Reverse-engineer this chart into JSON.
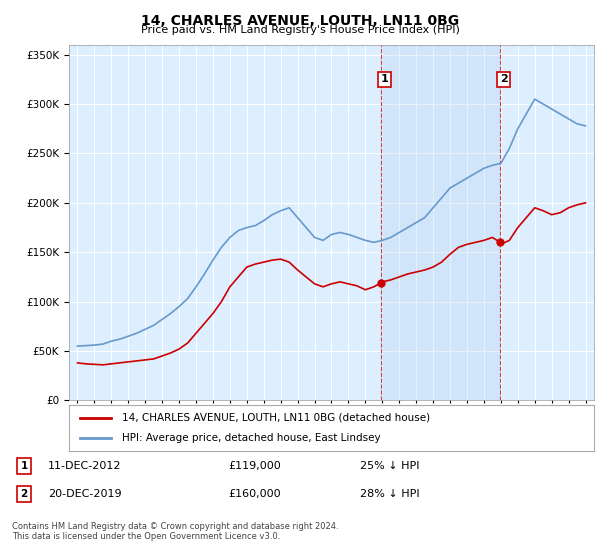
{
  "title": "14, CHARLES AVENUE, LOUTH, LN11 0BG",
  "subtitle": "Price paid vs. HM Land Registry's House Price Index (HPI)",
  "legend_line1": "14, CHARLES AVENUE, LOUTH, LN11 0BG (detached house)",
  "legend_line2": "HPI: Average price, detached house, East Lindsey",
  "annotation1_label": "1",
  "annotation1_date": "11-DEC-2012",
  "annotation1_price": "£119,000",
  "annotation1_hpi": "25% ↓ HPI",
  "annotation2_label": "2",
  "annotation2_date": "20-DEC-2019",
  "annotation2_price": "£160,000",
  "annotation2_hpi": "28% ↓ HPI",
  "footnote": "Contains HM Land Registry data © Crown copyright and database right 2024.\nThis data is licensed under the Open Government Licence v3.0.",
  "red_color": "#cc0000",
  "blue_color": "#6699cc",
  "background_color": "#ddeeff",
  "highlight1_x": 2012.92,
  "highlight2_x": 2019.96,
  "ylim": [
    0,
    360000
  ],
  "xlim": [
    1994.5,
    2025.5
  ],
  "years_hpi": [
    1995,
    1995.5,
    1996,
    1996.5,
    1997,
    1997.5,
    1998,
    1998.5,
    1999,
    1999.5,
    2000,
    2000.5,
    2001,
    2001.5,
    2002,
    2002.5,
    2003,
    2003.5,
    2004,
    2004.5,
    2005,
    2005.5,
    2006,
    2006.5,
    2007,
    2007.5,
    2008,
    2008.5,
    2009,
    2009.5,
    2010,
    2010.5,
    2011,
    2011.5,
    2012,
    2012.5,
    2013,
    2013.5,
    2014,
    2014.5,
    2015,
    2015.5,
    2016,
    2016.5,
    2017,
    2017.5,
    2018,
    2018.5,
    2019,
    2019.5,
    2020,
    2020.5,
    2021,
    2021.5,
    2022,
    2022.5,
    2023,
    2023.5,
    2024,
    2024.5,
    2025
  ],
  "hpi_values": [
    55000,
    55500,
    56000,
    57000,
    60000,
    62000,
    65000,
    68000,
    72000,
    76000,
    82000,
    88000,
    95000,
    103000,
    115000,
    128000,
    142000,
    155000,
    165000,
    172000,
    175000,
    177000,
    182000,
    188000,
    192000,
    195000,
    185000,
    175000,
    165000,
    162000,
    168000,
    170000,
    168000,
    165000,
    162000,
    160000,
    162000,
    165000,
    170000,
    175000,
    180000,
    185000,
    195000,
    205000,
    215000,
    220000,
    225000,
    230000,
    235000,
    238000,
    240000,
    255000,
    275000,
    290000,
    305000,
    300000,
    295000,
    290000,
    285000,
    280000,
    278000
  ],
  "red_years": [
    1995,
    1995.5,
    1996,
    1996.5,
    1997,
    1997.5,
    1998,
    1998.5,
    1999,
    1999.5,
    2000,
    2000.5,
    2001,
    2001.5,
    2002,
    2002.5,
    2003,
    2003.5,
    2004,
    2004.5,
    2005,
    2005.5,
    2006,
    2006.5,
    2007,
    2007.5,
    2008,
    2008.5,
    2009,
    2009.5,
    2010,
    2010.5,
    2011,
    2011.5,
    2012,
    2012.5,
    2012.92,
    2013,
    2013.5,
    2014,
    2014.5,
    2015,
    2015.5,
    2016,
    2016.5,
    2017,
    2017.5,
    2018,
    2018.5,
    2019,
    2019.5,
    2019.96,
    2020,
    2020.5,
    2021,
    2021.5,
    2022,
    2022.5,
    2023,
    2023.5,
    2024,
    2024.5,
    2025
  ],
  "red_values": [
    38000,
    37000,
    36500,
    36000,
    37000,
    38000,
    39000,
    40000,
    41000,
    42000,
    45000,
    48000,
    52000,
    58000,
    68000,
    78000,
    88000,
    100000,
    115000,
    125000,
    135000,
    138000,
    140000,
    142000,
    143000,
    140000,
    132000,
    125000,
    118000,
    115000,
    118000,
    120000,
    118000,
    116000,
    112000,
    115000,
    119000,
    120000,
    122000,
    125000,
    128000,
    130000,
    132000,
    135000,
    140000,
    148000,
    155000,
    158000,
    160000,
    162000,
    165000,
    160000,
    158000,
    162000,
    175000,
    185000,
    195000,
    192000,
    188000,
    190000,
    195000,
    198000,
    200000
  ]
}
